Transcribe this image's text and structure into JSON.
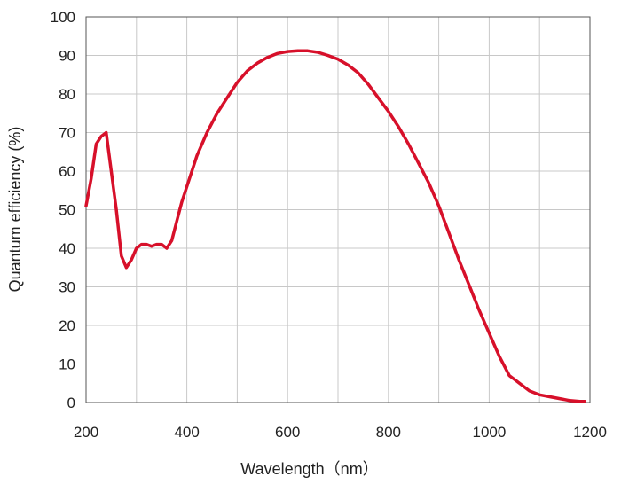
{
  "chart_data": {
    "type": "line",
    "title": "",
    "xlabel": "Wavelength（nm）",
    "ylabel": "Quantum efficiency (%)",
    "xlim": [
      200,
      1200
    ],
    "ylim": [
      0,
      100
    ],
    "x_ticks": [
      200,
      400,
      600,
      800,
      1000,
      1200
    ],
    "y_ticks": [
      0,
      10,
      20,
      30,
      40,
      50,
      60,
      70,
      80,
      90,
      100
    ],
    "grid": true,
    "legend": "none",
    "series": [
      {
        "color": "#d7102a",
        "x": [
          200,
          210,
          220,
          230,
          240,
          250,
          260,
          270,
          280,
          290,
          300,
          310,
          320,
          330,
          340,
          350,
          360,
          370,
          380,
          390,
          400,
          420,
          440,
          460,
          480,
          500,
          520,
          540,
          560,
          580,
          600,
          620,
          640,
          660,
          680,
          700,
          720,
          740,
          760,
          780,
          800,
          820,
          840,
          860,
          880,
          900,
          920,
          940,
          960,
          980,
          1000,
          1020,
          1040,
          1050,
          1060,
          1080,
          1100,
          1120,
          1140,
          1160,
          1180,
          1190
        ],
        "y": [
          51,
          58,
          67,
          69,
          70,
          60,
          50,
          38,
          35,
          37,
          40,
          41,
          41,
          40.5,
          41,
          41,
          40,
          42,
          47,
          52,
          56,
          64,
          70,
          75,
          79,
          83,
          86,
          88,
          89.5,
          90.5,
          91,
          91.2,
          91.2,
          90.8,
          90,
          89,
          87.5,
          85.5,
          82.5,
          79,
          75.5,
          71.5,
          67,
          62,
          57,
          51,
          44,
          37,
          30.5,
          24,
          18,
          12,
          7,
          6,
          5,
          3,
          2,
          1.5,
          1,
          0.5,
          0.3,
          0.3
        ]
      }
    ]
  }
}
